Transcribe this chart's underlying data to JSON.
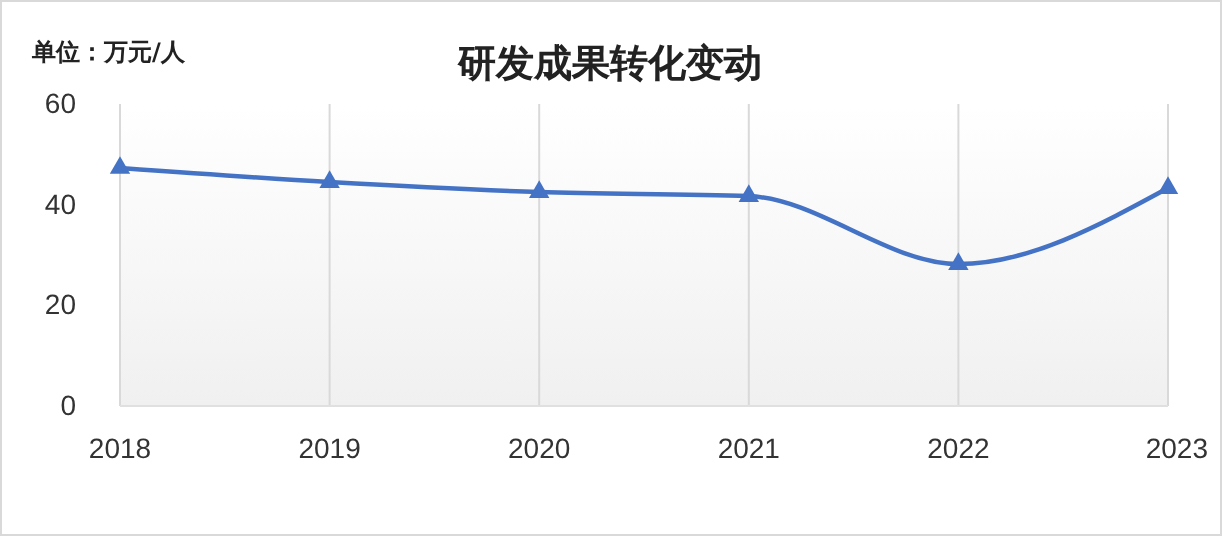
{
  "chart_data": {
    "type": "line",
    "title": "研发成果转化变动",
    "ylabel": "单位：万元/人",
    "categories": [
      "2018",
      "2019",
      "2020",
      "2021",
      "2022",
      "2023"
    ],
    "series": [
      {
        "color": "#4472c4",
        "values": [
          47.3,
          44.5,
          42.5,
          41.7,
          28.2,
          43.3
        ]
      }
    ],
    "ylim": [
      0,
      60
    ],
    "yticks": [
      0,
      20,
      40,
      60
    ],
    "grid": "x",
    "marker": "triangle",
    "line_style": "solid"
  }
}
